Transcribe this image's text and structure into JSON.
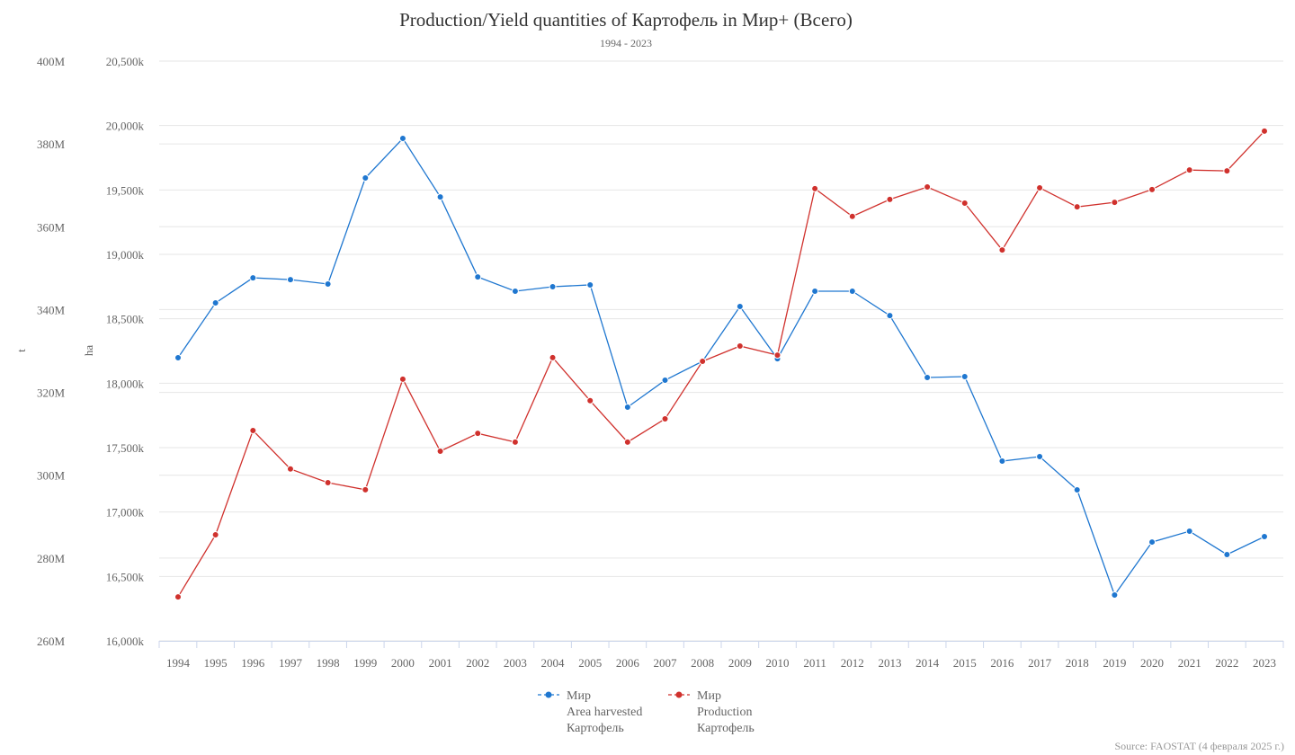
{
  "chart_data": {
    "type": "line",
    "title": "Production/Yield quantities of Картофель in Мир+ (Всего)",
    "subtitle": "1994 - 2023",
    "source": "Source: FAOSTAT (4 февраля 2025 г.)",
    "x": [
      1994,
      1995,
      1996,
      1997,
      1998,
      1999,
      2000,
      2001,
      2002,
      2003,
      2004,
      2005,
      2006,
      2007,
      2008,
      2009,
      2010,
      2011,
      2012,
      2013,
      2014,
      2015,
      2016,
      2017,
      2018,
      2019,
      2020,
      2021,
      2022,
      2023
    ],
    "axes": {
      "t": {
        "label": "t",
        "range": [
          260,
          400
        ],
        "unit": "M",
        "ticks": [
          "260M",
          "280M",
          "300M",
          "320M",
          "340M",
          "360M",
          "380M",
          "400M"
        ]
      },
      "ha": {
        "label": "ha",
        "range": [
          16000,
          20500
        ],
        "unit": "k",
        "ticks": [
          "16,000k",
          "16,500k",
          "17,000k",
          "17,500k",
          "18,000k",
          "18,500k",
          "19,000k",
          "19,500k",
          "20,000k",
          "20,500k"
        ]
      }
    },
    "series": [
      {
        "name": "Area harvested",
        "legend": [
          "Мир",
          "Area harvested",
          "Картофель"
        ],
        "axis": "ha",
        "color": "#1f77d0",
        "values": [
          18198,
          18623,
          18818,
          18804,
          18770,
          19593,
          19900,
          19446,
          18825,
          18714,
          18749,
          18763,
          17814,
          18023,
          18170,
          18595,
          18190,
          18714,
          18714,
          18525,
          18044,
          18051,
          17395,
          17430,
          17172,
          16356,
          16767,
          16851,
          16670,
          16809
        ]
      },
      {
        "name": "Production",
        "legend": [
          "Мир",
          "Production",
          "Картофель"
        ],
        "axis": "t",
        "color": "#d0312d",
        "values": [
          270.6,
          285.6,
          310.8,
          301.5,
          298.2,
          296.5,
          323.2,
          305.8,
          310.1,
          308.0,
          328.4,
          318.0,
          308.0,
          313.6,
          327.5,
          331.2,
          329.0,
          369.2,
          362.5,
          366.6,
          369.6,
          365.7,
          354.4,
          369.4,
          364.8,
          365.9,
          369.0,
          373.7,
          373.5,
          383.1
        ]
      }
    ],
    "grid": true,
    "legend_position": "bottom-center"
  }
}
